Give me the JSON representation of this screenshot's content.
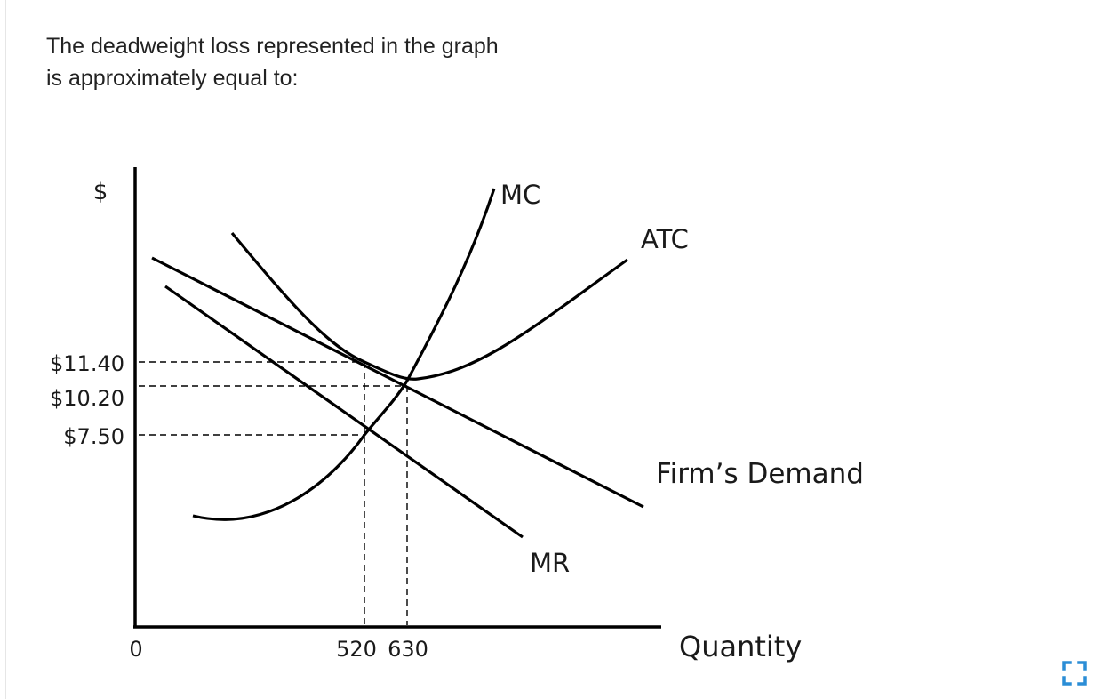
{
  "question": {
    "line1": "The deadweight loss represented in the graph",
    "line2": "is approximately equal to:"
  },
  "chart_data": {
    "type": "line",
    "ylabel": "$",
    "xlabel": "Quantity",
    "origin_label": "0",
    "y_ticks": [
      {
        "label": "$11.40",
        "value": 11.4
      },
      {
        "label": "$10.20",
        "value": 10.2
      },
      {
        "label": "$7.50",
        "value": 7.5
      }
    ],
    "x_ticks": [
      {
        "label": "520",
        "value": 520
      },
      {
        "label": "630",
        "value": 630
      }
    ],
    "curves": [
      {
        "name": "MC",
        "shape": "rising convex curve",
        "passes_through": [
          [
            520,
            7.5
          ],
          [
            630,
            10.2
          ]
        ]
      },
      {
        "name": "ATC",
        "shape": "U-shaped curve",
        "passes_through": [
          [
            520,
            11.4
          ]
        ]
      },
      {
        "name": "Firm’s Demand",
        "shape": "downward sloping line",
        "passes_through": [
          [
            520,
            11.4
          ],
          [
            630,
            10.2
          ]
        ]
      },
      {
        "name": "MR",
        "shape": "downward sloping line",
        "passes_through": [
          [
            520,
            7.5
          ]
        ]
      }
    ],
    "colors": {
      "curves": "#000000",
      "guides": "#000000",
      "text": "#1a1a1a"
    }
  },
  "controls": {
    "expand_icon": "expand-icon",
    "accent": "#2b8dd6"
  }
}
